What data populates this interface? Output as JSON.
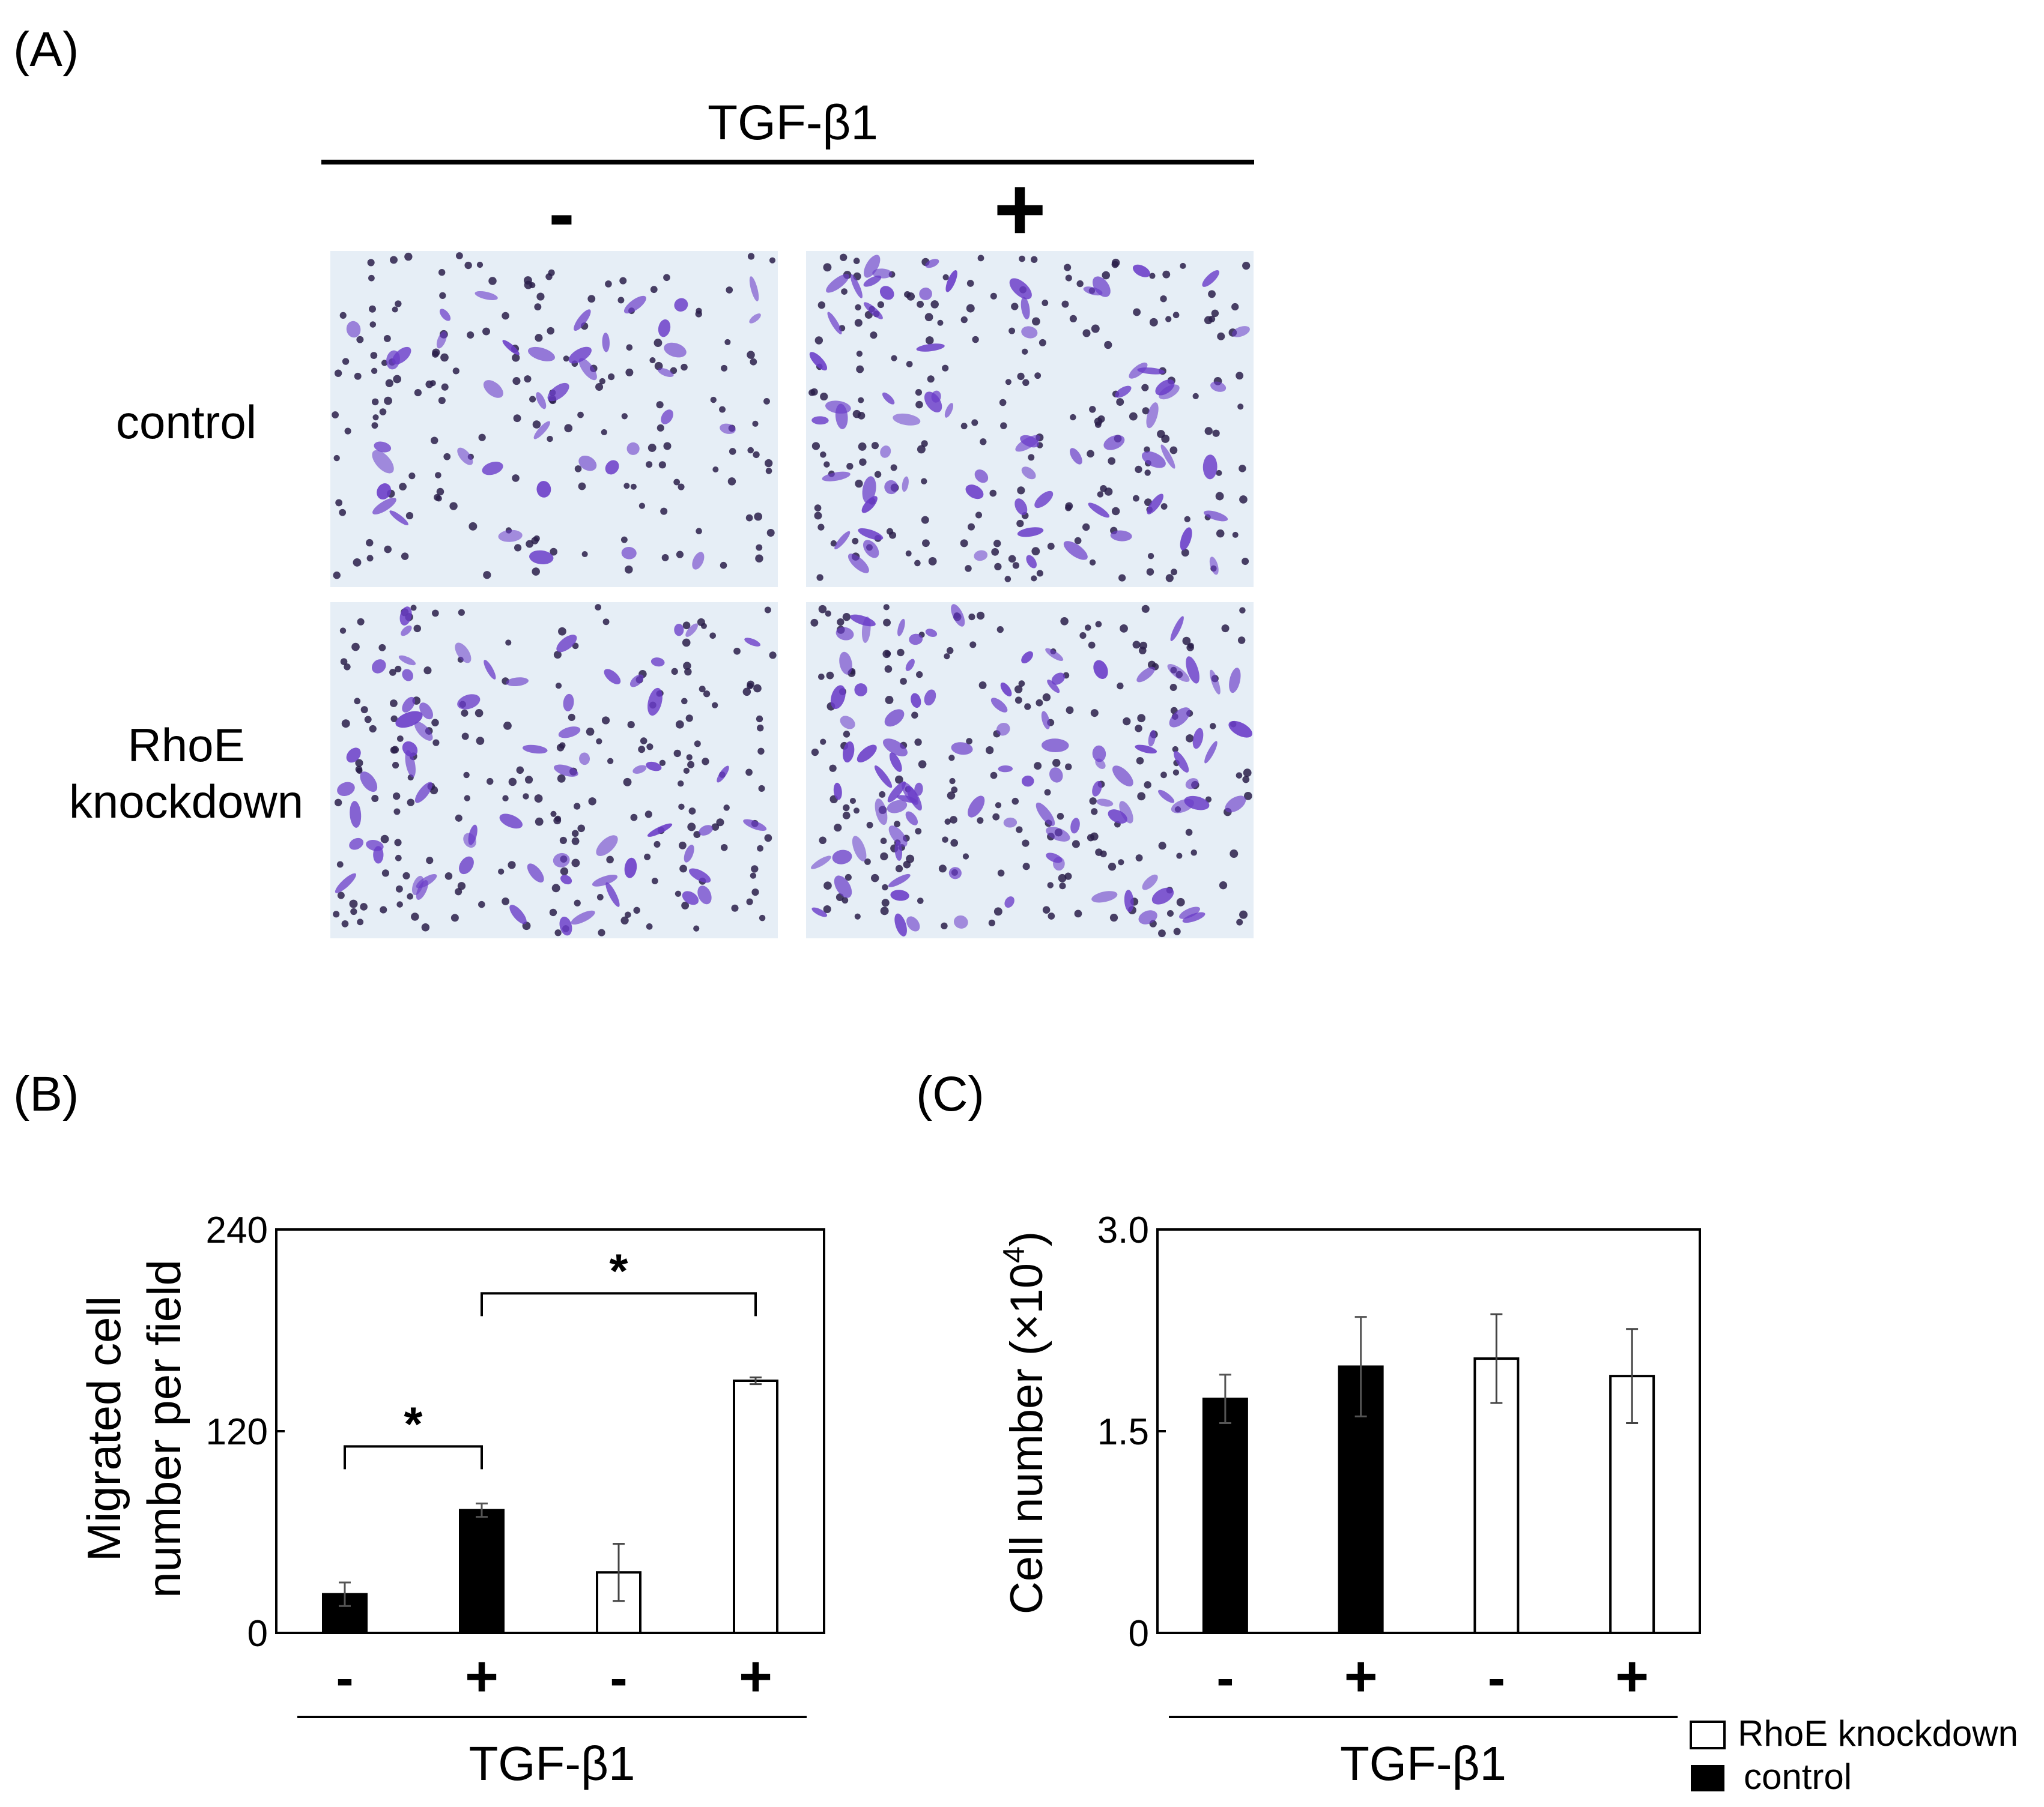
{
  "panelA": {
    "label": "(A)",
    "treatment_title": "TGF-β1",
    "col_minus": "-",
    "col_plus": "+",
    "row_control": "control",
    "row_knockdown_line1": "RhoE",
    "row_knockdown_line2": "knockdown",
    "colors": {
      "stain": "#6a3cc8",
      "nucleus": "#2a1f4a",
      "background": "#e6eef6"
    }
  },
  "chart_data": [
    {
      "panel_label": "(B)",
      "type": "bar",
      "categories": [
        "-",
        "+",
        "-",
        "+"
      ],
      "groups": [
        "control",
        "control",
        "RhoE knockdown",
        "RhoE knockdown"
      ],
      "values": [
        23,
        73,
        36,
        150
      ],
      "errors": [
        7,
        4,
        17,
        2
      ],
      "ylabel_line1": "Migrated cell",
      "ylabel_line2": "number per field",
      "xlabel": "TGF-β1",
      "yticks": [
        "0",
        "120",
        "240"
      ],
      "ylim": [
        0,
        240
      ],
      "significance": [
        {
          "from": 0,
          "to": 1,
          "label": "*"
        },
        {
          "from": 1,
          "to": 3,
          "label": "*"
        }
      ]
    },
    {
      "panel_label": "(C)",
      "type": "bar",
      "categories": [
        "-",
        "+",
        "-",
        "+"
      ],
      "groups": [
        "control",
        "control",
        "RhoE knockdown",
        "RhoE knockdown"
      ],
      "values": [
        1.74,
        1.98,
        2.04,
        1.91
      ],
      "errors": [
        0.18,
        0.37,
        0.33,
        0.35
      ],
      "ylabel": "Cell number (×10",
      "ylabel_sup": "4",
      "ylabel_close": ")",
      "xlabel": "TGF-β1",
      "yticks": [
        "0",
        "1.5",
        "3.0"
      ],
      "ylim": [
        0,
        3.0
      ]
    }
  ],
  "legend": {
    "items": [
      {
        "label": "RhoE knockdown",
        "fill": "#ffffff"
      },
      {
        "label": "control",
        "fill": "#000000"
      }
    ]
  },
  "colors": {
    "control_bar": "#000000",
    "knockdown_bar": "#ffffff",
    "axis": "#000000"
  }
}
